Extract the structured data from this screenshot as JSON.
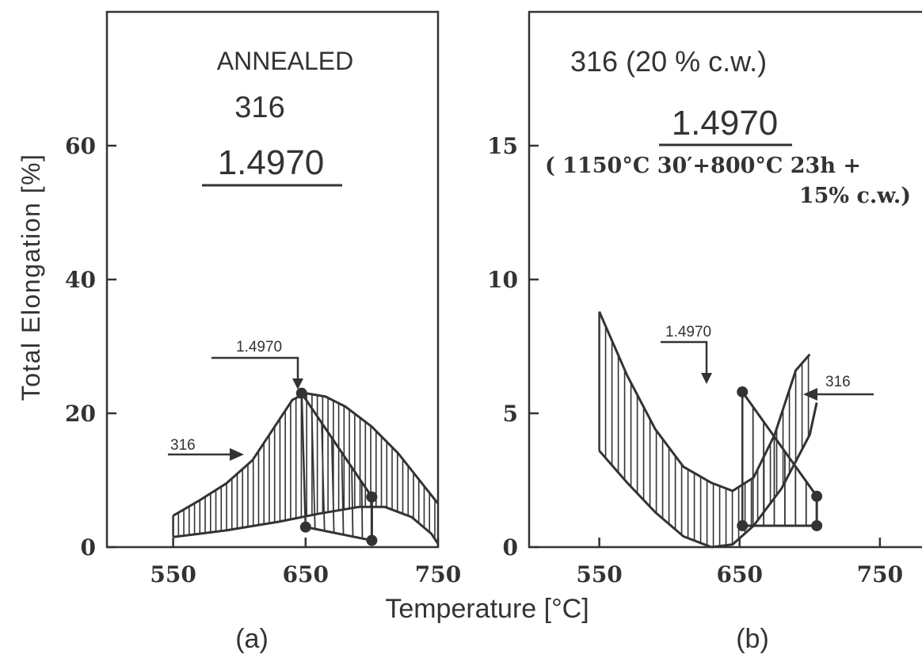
{
  "figure": {
    "xlabel": "Temperature [°C]",
    "ylabel": "Total Elongation [%]"
  },
  "chart_data": [
    {
      "type": "area",
      "panel_label": "(a)",
      "title_lines": [
        "ANNEALED",
        "316"
      ],
      "title_underlined": "1.4970",
      "xlim": [
        500,
        750
      ],
      "ylim": [
        0,
        80
      ],
      "xticks": [
        550,
        650,
        750
      ],
      "yticks": [
        0,
        20,
        40,
        60
      ],
      "series": [
        {
          "name": "316",
          "style": "hatched band",
          "upper": {
            "x": [
              550,
              570,
              590,
              610,
              625,
              640,
              650,
              665,
              680,
              700,
              720,
              740,
              750
            ],
            "y": [
              4.7,
              7.0,
              9.5,
              13.0,
              17.5,
              22.0,
              23.0,
              22.5,
              21.0,
              18.0,
              14.0,
              9.0,
              6.5
            ]
          },
          "lower": {
            "x": [
              550,
              590,
              630,
              660,
              690,
              710,
              730,
              745,
              750
            ],
            "y": [
              1.5,
              2.5,
              3.8,
              5.0,
              6.0,
              6.0,
              4.5,
              2.0,
              0.5
            ]
          }
        },
        {
          "name": "1.4970",
          "style": "hatched band with markers",
          "points": {
            "x": [
              647,
              650,
              700,
              700
            ],
            "y": [
              23.0,
              3.0,
              7.5,
              1.0
            ]
          }
        }
      ],
      "annotations": [
        {
          "text": "1.4970",
          "x": 650,
          "y": 23
        },
        {
          "text": "316",
          "x": 615,
          "y": 14.5
        }
      ]
    },
    {
      "type": "area",
      "panel_label": "(b)",
      "title_lines": [
        "316 (20 % c.w.)"
      ],
      "title_underlined": "1.4970",
      "subtitle_lines": [
        "( 1150°C 30′+800°C 23h +",
        "15% c.w.)"
      ],
      "xlim": [
        500,
        780
      ],
      "ylim": [
        0,
        20
      ],
      "xticks": [
        550,
        650,
        750
      ],
      "yticks": [
        0,
        5,
        10,
        15
      ],
      "series": [
        {
          "name": "316",
          "style": "hatched band",
          "upper": {
            "x": [
              550,
              570,
              590,
              610,
              630,
              645,
              660,
              675,
              690,
              700
            ],
            "y": [
              8.8,
              6.4,
              4.4,
              3.0,
              2.4,
              2.1,
              2.6,
              4.2,
              6.6,
              7.2
            ]
          },
          "lower": {
            "x": [
              550,
              570,
              590,
              610,
              630,
              645,
              660,
              680,
              700,
              705
            ],
            "y": [
              3.6,
              2.4,
              1.3,
              0.4,
              0.0,
              0.1,
              0.8,
              2.2,
              4.2,
              5.4
            ]
          }
        },
        {
          "name": "1.4970",
          "style": "hatched band with markers",
          "points": {
            "x": [
              652,
              652,
              705,
              705
            ],
            "y": [
              5.8,
              0.8,
              1.9,
              0.8
            ]
          }
        }
      ],
      "annotations": [
        {
          "text": "1.4970",
          "x": 652,
          "y": 5.8
        },
        {
          "text": "316",
          "x": 710,
          "y": 5.7
        }
      ]
    }
  ]
}
